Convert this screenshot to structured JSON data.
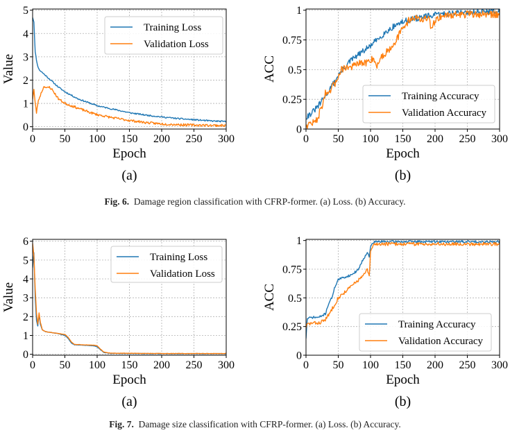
{
  "figures": [
    {
      "caption_label": "Fig. 6.",
      "caption_text": "Damage region classification with CFRP-former. (a) Loss. (b) Accuracy."
    },
    {
      "caption_label": "Fig. 7.",
      "caption_text": "Damage size classification with CFRP-former. (a) Loss. (b) Accuracy."
    }
  ],
  "colors": {
    "training": "#1f77b4",
    "validation": "#ff7f0e",
    "grid": "#b0b0b0",
    "axis": "#000000"
  },
  "chart_data": [
    {
      "id": "fig6a",
      "panel_label": "(a)",
      "type": "line",
      "xlabel": "Epoch",
      "ylabel": "Value",
      "xlim": [
        0,
        300
      ],
      "ylim": [
        -0.1,
        5.05
      ],
      "xticks": [
        0,
        50,
        100,
        150,
        200,
        250,
        300
      ],
      "xtick_labels": [
        "0",
        "50",
        "100",
        "150",
        "200",
        "250",
        "300"
      ],
      "yticks": [
        0,
        1,
        2,
        3,
        4,
        5
      ],
      "ytick_labels": [
        "0",
        "1",
        "2",
        "3",
        "4",
        "5"
      ],
      "grid": true,
      "legend_position": "top-right",
      "series": [
        {
          "name": "Training Loss",
          "color": "#1f77b4",
          "noise": 0.03,
          "seed": 11,
          "points": [
            [
              0,
              4.7
            ],
            [
              2,
              4.5
            ],
            [
              4,
              3.2
            ],
            [
              7,
              2.7
            ],
            [
              10,
              2.45
            ],
            [
              20,
              2.2
            ],
            [
              30,
              1.95
            ],
            [
              40,
              1.7
            ],
            [
              50,
              1.5
            ],
            [
              60,
              1.35
            ],
            [
              70,
              1.2
            ],
            [
              80,
              1.1
            ],
            [
              90,
              1.0
            ],
            [
              100,
              0.9
            ],
            [
              125,
              0.75
            ],
            [
              150,
              0.6
            ],
            [
              175,
              0.5
            ],
            [
              200,
              0.42
            ],
            [
              225,
              0.35
            ],
            [
              250,
              0.3
            ],
            [
              275,
              0.25
            ],
            [
              300,
              0.22
            ]
          ]
        },
        {
          "name": "Validation Loss",
          "color": "#ff7f0e",
          "noise": 0.05,
          "seed": 23,
          "points": [
            [
              0,
              1.2
            ],
            [
              2,
              1.6
            ],
            [
              4,
              1.0
            ],
            [
              6,
              0.6
            ],
            [
              8,
              1.0
            ],
            [
              10,
              1.2
            ],
            [
              14,
              1.5
            ],
            [
              18,
              1.75
            ],
            [
              22,
              1.65
            ],
            [
              26,
              1.7
            ],
            [
              30,
              1.6
            ],
            [
              35,
              1.4
            ],
            [
              40,
              1.2
            ],
            [
              50,
              1.0
            ],
            [
              60,
              0.9
            ],
            [
              70,
              0.8
            ],
            [
              80,
              0.7
            ],
            [
              90,
              0.6
            ],
            [
              100,
              0.52
            ],
            [
              125,
              0.38
            ],
            [
              150,
              0.27
            ],
            [
              175,
              0.18
            ],
            [
              200,
              0.12
            ],
            [
              225,
              0.09
            ],
            [
              250,
              0.07
            ],
            [
              275,
              0.06
            ],
            [
              300,
              0.05
            ]
          ]
        }
      ]
    },
    {
      "id": "fig6b",
      "panel_label": "(b)",
      "type": "line",
      "xlabel": "Epoch",
      "ylabel": "ACC",
      "xlim": [
        0,
        300
      ],
      "ylim": [
        0,
        1.01
      ],
      "xticks": [
        0,
        50,
        100,
        150,
        200,
        250,
        300
      ],
      "xtick_labels": [
        "0",
        "50",
        "100",
        "150",
        "200",
        "250",
        "300"
      ],
      "yticks": [
        0,
        0.25,
        0.5,
        0.75,
        1
      ],
      "ytick_labels": [
        "0",
        "0.25",
        "0.5",
        "0.75",
        "1"
      ],
      "grid": true,
      "legend_position": "bottom-right",
      "series": [
        {
          "name": "Training Accuracy",
          "color": "#1f77b4",
          "noise": 0.025,
          "seed": 31,
          "points": [
            [
              0,
              0.1
            ],
            [
              10,
              0.14
            ],
            [
              20,
              0.2
            ],
            [
              30,
              0.28
            ],
            [
              40,
              0.36
            ],
            [
              50,
              0.45
            ],
            [
              60,
              0.52
            ],
            [
              70,
              0.58
            ],
            [
              80,
              0.62
            ],
            [
              90,
              0.66
            ],
            [
              100,
              0.7
            ],
            [
              110,
              0.75
            ],
            [
              120,
              0.8
            ],
            [
              130,
              0.84
            ],
            [
              140,
              0.88
            ],
            [
              150,
              0.9
            ],
            [
              160,
              0.92
            ],
            [
              170,
              0.93
            ],
            [
              180,
              0.94
            ],
            [
              190,
              0.95
            ],
            [
              200,
              0.96
            ],
            [
              225,
              0.975
            ],
            [
              250,
              0.985
            ],
            [
              275,
              0.99
            ],
            [
              300,
              0.99
            ]
          ]
        },
        {
          "name": "Validation Accuracy",
          "color": "#ff7f0e",
          "noise": 0.03,
          "seed": 47,
          "points": [
            [
              0,
              0.03
            ],
            [
              8,
              0.05
            ],
            [
              15,
              0.06
            ],
            [
              20,
              0.12
            ],
            [
              25,
              0.2
            ],
            [
              30,
              0.3
            ],
            [
              35,
              0.28
            ],
            [
              40,
              0.35
            ],
            [
              45,
              0.38
            ],
            [
              50,
              0.45
            ],
            [
              55,
              0.5
            ],
            [
              60,
              0.52
            ],
            [
              70,
              0.52
            ],
            [
              80,
              0.55
            ],
            [
              90,
              0.55
            ],
            [
              100,
              0.58
            ],
            [
              105,
              0.6
            ],
            [
              110,
              0.52
            ],
            [
              115,
              0.6
            ],
            [
              120,
              0.62
            ],
            [
              130,
              0.68
            ],
            [
              140,
              0.75
            ],
            [
              150,
              0.85
            ],
            [
              155,
              0.88
            ],
            [
              160,
              0.92
            ],
            [
              170,
              0.94
            ],
            [
              180,
              0.92
            ],
            [
              190,
              0.93
            ],
            [
              195,
              0.83
            ],
            [
              200,
              0.92
            ],
            [
              210,
              0.95
            ],
            [
              220,
              0.96
            ],
            [
              250,
              0.965
            ],
            [
              300,
              0.965
            ]
          ]
        }
      ]
    },
    {
      "id": "fig7a",
      "panel_label": "(a)",
      "type": "line",
      "xlabel": "Epoch",
      "ylabel": "Value",
      "xlim": [
        0,
        300
      ],
      "ylim": [
        -0.05,
        6.1
      ],
      "xticks": [
        0,
        50,
        100,
        150,
        200,
        250,
        300
      ],
      "xtick_labels": [
        "0",
        "50",
        "100",
        "150",
        "200",
        "250",
        "300"
      ],
      "yticks": [
        0,
        1,
        2,
        3,
        4,
        5,
        6
      ],
      "ytick_labels": [
        "0",
        "1",
        "2",
        "3",
        "4",
        "5",
        "6"
      ],
      "grid": true,
      "legend_position": "top-right",
      "series": [
        {
          "name": "Training Loss",
          "color": "#1f77b4",
          "noise": 0.01,
          "seed": 53,
          "points": [
            [
              0,
              4.6
            ],
            [
              2,
              5.4
            ],
            [
              4,
              3.0
            ],
            [
              6,
              1.8
            ],
            [
              8,
              1.5
            ],
            [
              10,
              2.1
            ],
            [
              12,
              1.6
            ],
            [
              15,
              1.3
            ],
            [
              20,
              1.2
            ],
            [
              30,
              1.15
            ],
            [
              40,
              1.1
            ],
            [
              50,
              1.0
            ],
            [
              55,
              0.85
            ],
            [
              60,
              0.6
            ],
            [
              65,
              0.5
            ],
            [
              80,
              0.48
            ],
            [
              95,
              0.45
            ],
            [
              100,
              0.4
            ],
            [
              105,
              0.25
            ],
            [
              110,
              0.1
            ],
            [
              120,
              0.05
            ],
            [
              150,
              0.04
            ],
            [
              200,
              0.03
            ],
            [
              300,
              0.03
            ]
          ]
        },
        {
          "name": "Validation Loss",
          "color": "#ff7f0e",
          "noise": 0.01,
          "seed": 61,
          "points": [
            [
              0,
              5.9
            ],
            [
              2,
              5.2
            ],
            [
              4,
              3.5
            ],
            [
              6,
              2.2
            ],
            [
              8,
              1.6
            ],
            [
              10,
              2.2
            ],
            [
              12,
              1.7
            ],
            [
              15,
              1.3
            ],
            [
              20,
              1.2
            ],
            [
              30,
              1.15
            ],
            [
              40,
              1.1
            ],
            [
              50,
              1.05
            ],
            [
              55,
              0.9
            ],
            [
              60,
              0.65
            ],
            [
              65,
              0.52
            ],
            [
              80,
              0.5
            ],
            [
              95,
              0.48
            ],
            [
              100,
              0.45
            ],
            [
              105,
              0.28
            ],
            [
              110,
              0.12
            ],
            [
              120,
              0.06
            ],
            [
              150,
              0.05
            ],
            [
              200,
              0.04
            ],
            [
              300,
              0.04
            ]
          ]
        }
      ]
    },
    {
      "id": "fig7b",
      "panel_label": "(b)",
      "type": "line",
      "xlabel": "Epoch",
      "ylabel": "ACC",
      "xlim": [
        0,
        300
      ],
      "ylim": [
        0,
        1.01
      ],
      "xticks": [
        0,
        50,
        100,
        150,
        200,
        250,
        300
      ],
      "xtick_labels": [
        "0",
        "50",
        "100",
        "150",
        "200",
        "250",
        "300"
      ],
      "yticks": [
        0,
        0.25,
        0.5,
        0.75,
        1
      ],
      "ytick_labels": [
        "0",
        "0.25",
        "0.5",
        "0.75",
        "1"
      ],
      "grid": true,
      "legend_position": "bottom-right",
      "series": [
        {
          "name": "Training Accuracy",
          "color": "#1f77b4",
          "noise": 0.01,
          "seed": 71,
          "points": [
            [
              0,
              0.15
            ],
            [
              2,
              0.32
            ],
            [
              10,
              0.33
            ],
            [
              20,
              0.33
            ],
            [
              30,
              0.36
            ],
            [
              35,
              0.45
            ],
            [
              40,
              0.5
            ],
            [
              45,
              0.6
            ],
            [
              50,
              0.66
            ],
            [
              60,
              0.68
            ],
            [
              70,
              0.7
            ],
            [
              80,
              0.74
            ],
            [
              90,
              0.85
            ],
            [
              95,
              0.9
            ],
            [
              98,
              0.85
            ],
            [
              100,
              0.95
            ],
            [
              105,
              0.985
            ],
            [
              110,
              0.99
            ],
            [
              150,
              0.99
            ],
            [
              200,
              0.99
            ],
            [
              250,
              0.99
            ],
            [
              300,
              0.99
            ]
          ]
        },
        {
          "name": "Validation Accuracy",
          "color": "#ff7f0e",
          "noise": 0.015,
          "seed": 83,
          "points": [
            [
              0,
              0.24
            ],
            [
              2,
              0.27
            ],
            [
              10,
              0.28
            ],
            [
              20,
              0.28
            ],
            [
              30,
              0.31
            ],
            [
              35,
              0.35
            ],
            [
              40,
              0.4
            ],
            [
              45,
              0.45
            ],
            [
              50,
              0.5
            ],
            [
              60,
              0.55
            ],
            [
              70,
              0.6
            ],
            [
              80,
              0.65
            ],
            [
              90,
              0.7
            ],
            [
              95,
              0.75
            ],
            [
              98,
              0.68
            ],
            [
              100,
              0.9
            ],
            [
              105,
              0.965
            ],
            [
              110,
              0.97
            ],
            [
              150,
              0.97
            ],
            [
              200,
              0.97
            ],
            [
              250,
              0.97
            ],
            [
              300,
              0.97
            ]
          ]
        }
      ]
    }
  ]
}
